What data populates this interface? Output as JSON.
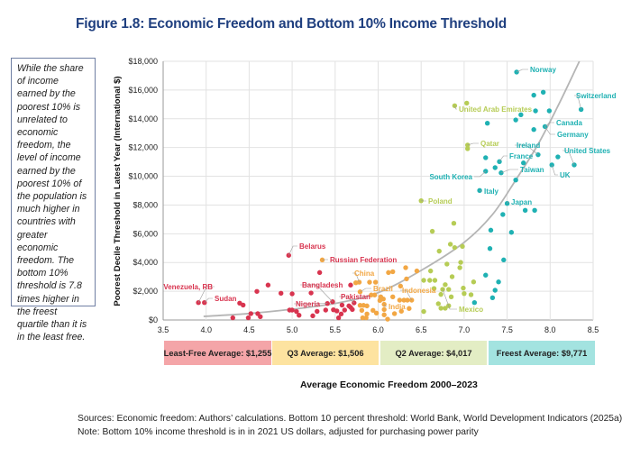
{
  "title": "Figure 1.8: Economic Freedom and Bottom 10% Income Threshold",
  "note": "While the share of income earned by the poorest 10% is unrelated to economic freedom, the level of income earned by the poorest 10% of the population is much higher in countries with greater economic freedom. The bottom 10% threshold is 7.8 times higher in the freest quartile than it is in the least free.",
  "footer": {
    "sources": "Sources: Economic freedom: Authors’ calculations. Bottom 10 percent threshold: World Bank, World Development Indicators (2025a)",
    "note": "Note: Bottom 10% income threshold is in in 2021 US dollars, adjusted for purchasing power parity"
  },
  "chart_data": {
    "type": "scatter",
    "xlabel": "Average Economic Freedom 2000–2023",
    "ylabel": "Poorest Decile Threshold in Latest Year (International $)",
    "xlim": [
      3.5,
      8.5
    ],
    "ylim": [
      0,
      18000
    ],
    "x_ticks": [
      "3.5",
      "4.0",
      "4.5",
      "5.0",
      "5.5",
      "6.0",
      "6.5",
      "7.0",
      "7.5",
      "8.0",
      "8.5"
    ],
    "y_ticks": [
      "$0",
      "$2,000",
      "$4,000",
      "$6,000",
      "$8,000",
      "$10,000",
      "$12,000",
      "$14,000",
      "$16,000",
      "$18,000"
    ],
    "grid": true,
    "quartile_bands": [
      {
        "label": "Least-Free Average: $1,255",
        "color": "#f4a5a8"
      },
      {
        "label": "Q3 Average: $1,506",
        "color": "#fde3a0"
      },
      {
        "label": "Q2 Average: $4,017",
        "color": "#e3edc4"
      },
      {
        "label": "Freest Average: $9,771",
        "color": "#a3e3e0"
      }
    ],
    "series": [
      {
        "color": "#d8344f",
        "points": [
          [
            4.96,
            4500
          ],
          [
            5.32,
            3300
          ],
          [
            4.72,
            2430
          ],
          [
            4.59,
            1990
          ],
          [
            4.87,
            1860
          ],
          [
            5.0,
            1820
          ],
          [
            5.22,
            1880
          ],
          [
            5.68,
            2430
          ],
          [
            3.91,
            1210
          ],
          [
            3.98,
            1210
          ],
          [
            4.39,
            1170
          ],
          [
            4.43,
            1040
          ],
          [
            4.31,
            150
          ],
          [
            4.49,
            150
          ],
          [
            4.52,
            440
          ],
          [
            4.6,
            440
          ],
          [
            4.63,
            230
          ],
          [
            4.97,
            690
          ],
          [
            5.0,
            690
          ],
          [
            5.05,
            590
          ],
          [
            5.08,
            330
          ],
          [
            5.24,
            290
          ],
          [
            5.29,
            600
          ],
          [
            5.39,
            690
          ],
          [
            5.41,
            1150
          ],
          [
            5.47,
            1270
          ],
          [
            5.48,
            710
          ],
          [
            5.52,
            630
          ],
          [
            5.57,
            420
          ],
          [
            5.54,
            150
          ],
          [
            5.58,
            1040
          ],
          [
            5.66,
            980
          ],
          [
            5.68,
            880
          ],
          [
            5.61,
            690
          ],
          [
            5.72,
            1190
          ],
          [
            5.7,
            730
          ]
        ]
      },
      {
        "color": "#f2a744",
        "points": [
          [
            5.35,
            4180
          ],
          [
            6.12,
            3300
          ],
          [
            6.17,
            3360
          ],
          [
            6.32,
            3640
          ],
          [
            6.45,
            3410
          ],
          [
            6.33,
            2860
          ],
          [
            5.74,
            2590
          ],
          [
            5.78,
            2630
          ],
          [
            5.9,
            2630
          ],
          [
            5.97,
            2630
          ],
          [
            6.26,
            2360
          ],
          [
            5.79,
            1960
          ],
          [
            5.92,
            1740
          ],
          [
            5.96,
            1740
          ],
          [
            6.03,
            1610
          ],
          [
            6.06,
            1460
          ],
          [
            6.17,
            1610
          ],
          [
            6.02,
            1360
          ],
          [
            6.25,
            1380
          ],
          [
            6.3,
            1380
          ],
          [
            6.34,
            1380
          ],
          [
            6.39,
            1380
          ],
          [
            5.79,
            1020
          ],
          [
            5.83,
            1020
          ],
          [
            5.87,
            980
          ],
          [
            5.81,
            670
          ],
          [
            5.94,
            670
          ],
          [
            5.98,
            480
          ],
          [
            5.87,
            420
          ],
          [
            5.82,
            150
          ],
          [
            5.86,
            150
          ],
          [
            6.07,
            730
          ],
          [
            6.07,
            360
          ],
          [
            6.11,
            60
          ],
          [
            6.19,
            440
          ],
          [
            6.27,
            610
          ],
          [
            6.36,
            800
          ],
          [
            6.07,
            1090
          ]
        ]
      },
      {
        "color": "#b6cc55",
        "points": [
          [
            6.89,
            14910
          ],
          [
            7.03,
            15090
          ],
          [
            7.04,
            12170
          ],
          [
            7.04,
            11920
          ],
          [
            6.5,
            8300
          ],
          [
            6.88,
            6730
          ],
          [
            6.63,
            6170
          ],
          [
            6.84,
            5270
          ],
          [
            6.89,
            5040
          ],
          [
            6.98,
            5120
          ],
          [
            6.71,
            4790
          ],
          [
            6.8,
            3890
          ],
          [
            6.96,
            4010
          ],
          [
            6.95,
            3640
          ],
          [
            6.61,
            3410
          ],
          [
            6.86,
            3010
          ],
          [
            6.53,
            2760
          ],
          [
            6.66,
            2760
          ],
          [
            6.6,
            2760
          ],
          [
            7.11,
            2650
          ],
          [
            6.78,
            2460
          ],
          [
            6.65,
            2190
          ],
          [
            6.75,
            2130
          ],
          [
            6.82,
            2130
          ],
          [
            6.99,
            2220
          ],
          [
            7.0,
            1840
          ],
          [
            7.08,
            1760
          ],
          [
            6.73,
            1780
          ],
          [
            6.85,
            1610
          ],
          [
            6.7,
            1130
          ],
          [
            6.73,
            820
          ],
          [
            6.78,
            820
          ],
          [
            6.82,
            990
          ],
          [
            6.53,
            590
          ]
        ]
      },
      {
        "color": "#1fb1b3",
        "points": [
          [
            7.61,
            17250
          ],
          [
            7.81,
            15640
          ],
          [
            7.92,
            15850
          ],
          [
            7.66,
            14280
          ],
          [
            7.83,
            14550
          ],
          [
            7.99,
            14550
          ],
          [
            7.6,
            13920
          ],
          [
            7.27,
            13690
          ],
          [
            8.36,
            14650
          ],
          [
            7.81,
            13250
          ],
          [
            7.94,
            13460
          ],
          [
            7.86,
            11500
          ],
          [
            8.09,
            11350
          ],
          [
            8.28,
            10790
          ],
          [
            8.02,
            10790
          ],
          [
            7.25,
            11290
          ],
          [
            7.41,
            11020
          ],
          [
            7.69,
            10930
          ],
          [
            7.36,
            10600
          ],
          [
            7.25,
            10350
          ],
          [
            7.43,
            10240
          ],
          [
            7.6,
            9740
          ],
          [
            7.18,
            9010
          ],
          [
            7.5,
            8110
          ],
          [
            7.71,
            7630
          ],
          [
            7.82,
            7630
          ],
          [
            7.45,
            7340
          ],
          [
            7.31,
            6250
          ],
          [
            7.55,
            6100
          ],
          [
            7.3,
            4970
          ],
          [
            7.46,
            4180
          ],
          [
            7.25,
            3120
          ],
          [
            7.4,
            2650
          ],
          [
            7.36,
            2070
          ],
          [
            7.33,
            1550
          ],
          [
            7.12,
            1210
          ]
        ]
      }
    ],
    "labels": [
      {
        "text": "Norway",
        "x": 7.61,
        "y": 17250,
        "color": "#1fb1b3"
      },
      {
        "text": "Switzerland",
        "x": 8.36,
        "y": 14650,
        "color": "#1fb1b3"
      },
      {
        "text": "United Arab Emirates",
        "x": 6.89,
        "y": 14910,
        "color": "#b6cc55"
      },
      {
        "text": "Canada",
        "x": 7.94,
        "y": 13460,
        "color": "#1fb1b3"
      },
      {
        "text": "Germany",
        "x": 7.94,
        "y": 13460,
        "color": "#1fb1b3"
      },
      {
        "text": "Qatar",
        "x": 7.04,
        "y": 12170,
        "color": "#b6cc55"
      },
      {
        "text": "Ireland",
        "x": 7.86,
        "y": 11500,
        "color": "#1fb1b3"
      },
      {
        "text": "United States",
        "x": 8.28,
        "y": 10790,
        "color": "#1fb1b3"
      },
      {
        "text": "France",
        "x": 7.41,
        "y": 11020,
        "color": "#1fb1b3"
      },
      {
        "text": "Taiwan",
        "x": 7.43,
        "y": 10240,
        "color": "#1fb1b3"
      },
      {
        "text": "UK",
        "x": 8.02,
        "y": 10790,
        "color": "#1fb1b3"
      },
      {
        "text": "South Korea",
        "x": 7.25,
        "y": 10350,
        "color": "#1fb1b3"
      },
      {
        "text": "Italy",
        "x": 7.18,
        "y": 9010,
        "color": "#1fb1b3"
      },
      {
        "text": "Japan",
        "x": 7.5,
        "y": 8110,
        "color": "#1fb1b3"
      },
      {
        "text": "Poland",
        "x": 6.5,
        "y": 8300,
        "color": "#b6cc55"
      },
      {
        "text": "Belarus",
        "x": 4.96,
        "y": 4500,
        "color": "#d8344f"
      },
      {
        "text": "Russian Federation",
        "x": 5.35,
        "y": 4180,
        "color": "#d8344f"
      },
      {
        "text": "China",
        "x": 5.78,
        "y": 2630,
        "color": "#f2a744"
      },
      {
        "text": "Venezuela, RB",
        "x": 3.91,
        "y": 1210,
        "color": "#d8344f"
      },
      {
        "text": "Sudan",
        "x": 3.98,
        "y": 1210,
        "color": "#d8344f"
      },
      {
        "text": "Bangladesh",
        "x": 5.47,
        "y": 1270,
        "color": "#d8344f"
      },
      {
        "text": "Brazil",
        "x": 5.79,
        "y": 1960,
        "color": "#f2a744"
      },
      {
        "text": "Indonesia",
        "x": 6.39,
        "y": 1380,
        "color": "#f2a744"
      },
      {
        "text": "Pakistan",
        "x": 5.72,
        "y": 1190,
        "color": "#d8344f"
      },
      {
        "text": "Nigeria",
        "x": 5.41,
        "y": 1150,
        "color": "#d8344f"
      },
      {
        "text": "India",
        "x": 6.07,
        "y": 1090,
        "color": "#f2a744"
      },
      {
        "text": "Mexico",
        "x": 6.75,
        "y": 2130,
        "color": "#b6cc55"
      }
    ],
    "trendline": [
      [
        3.97,
        250
      ],
      [
        4.5,
        450
      ],
      [
        5.0,
        750
      ],
      [
        5.5,
        1150
      ],
      [
        6.0,
        1900
      ],
      [
        6.5,
        3450
      ],
      [
        7.0,
        5400
      ],
      [
        7.33,
        7340
      ],
      [
        7.6,
        9740
      ],
      [
        7.86,
        12230
      ],
      [
        8.1,
        15000
      ],
      [
        8.34,
        18000
      ]
    ]
  }
}
